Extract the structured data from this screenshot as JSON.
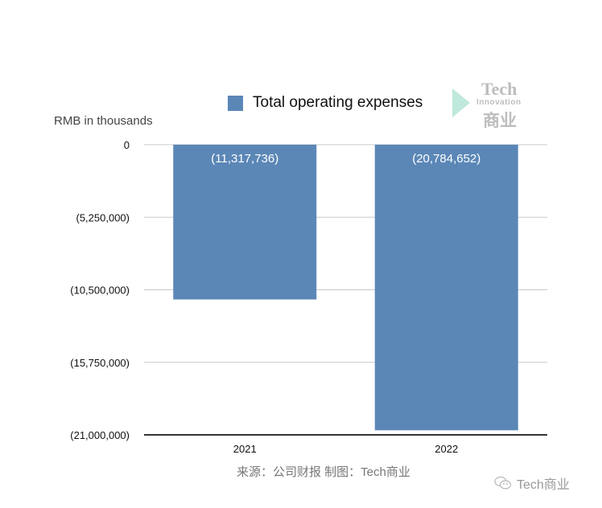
{
  "chart_data": {
    "type": "bar",
    "title": "",
    "categories": [
      "2021",
      "2022"
    ],
    "series": [
      {
        "name": "Total operating expenses",
        "values": [
          -11317736,
          -20784652
        ],
        "color": "#5b87b7"
      }
    ],
    "data_labels": [
      "(11,317,736)",
      "(20,784,652)"
    ],
    "ylabel": "RMB in thousands",
    "xlabel": "",
    "ylim": [
      -21000000,
      0
    ],
    "yticks": [
      0,
      -5250000,
      -10500000,
      -15750000,
      -21000000
    ],
    "ytick_labels": [
      "0",
      "(5,250,000)",
      "(10,500,000)",
      "(15,750,000)",
      "(21,000,000)"
    ],
    "grid": true,
    "legend_position": "top"
  },
  "source_note": "来源：公司财报 制图：Tech商业",
  "watermark": {
    "line1": "Tech",
    "line2": "Innovation",
    "line3": "商业"
  },
  "footer": {
    "icon": "wechat-icon",
    "label": "Tech商业"
  }
}
